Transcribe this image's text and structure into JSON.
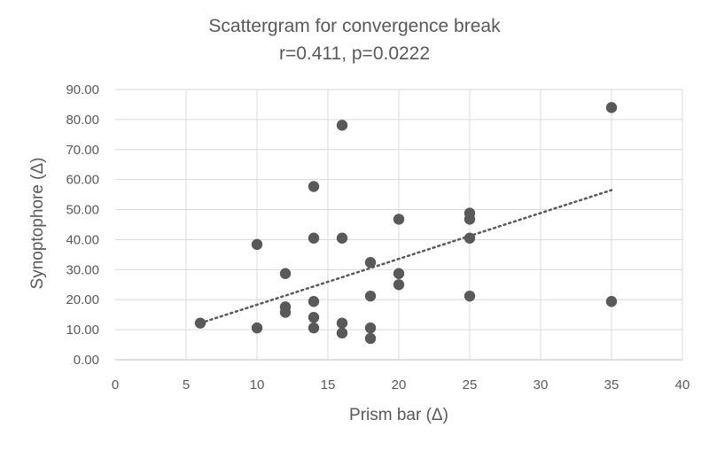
{
  "chart_data": {
    "type": "scatter",
    "title": "Scattergram for convergence break",
    "subtitle": "r=0.411, p=0.0222",
    "xlabel": "Prism bar (Δ)",
    "ylabel": "Synoptophore (Δ)",
    "xlim": [
      0,
      40
    ],
    "ylim": [
      0,
      90
    ],
    "xticks": [
      "0",
      "5",
      "10",
      "15",
      "20",
      "25",
      "30",
      "35",
      "40"
    ],
    "yticks": [
      "0.00",
      "10.00",
      "20.00",
      "30.00",
      "40.00",
      "50.00",
      "60.00",
      "70.00",
      "80.00",
      "90.00"
    ],
    "grid": true,
    "trendline": {
      "type": "linear",
      "x_start": 6,
      "y_start": 12.2,
      "x_end": 35,
      "y_end": 56.5
    },
    "colors": {
      "points": "#595959",
      "grid": "#d9d9d9",
      "text": "#595959"
    },
    "series": [
      {
        "points": [
          [
            6,
            12.2
          ],
          [
            10,
            10.6
          ],
          [
            10,
            38.4
          ],
          [
            12,
            15.8
          ],
          [
            12,
            17.6
          ],
          [
            12,
            28.7
          ],
          [
            14,
            10.6
          ],
          [
            14,
            14.1
          ],
          [
            14,
            19.4
          ],
          [
            14,
            40.5
          ],
          [
            14,
            57.7
          ],
          [
            16,
            8.9
          ],
          [
            16,
            12.2
          ],
          [
            16,
            40.5
          ],
          [
            16,
            78.1
          ],
          [
            18,
            7.1
          ],
          [
            18,
            10.6
          ],
          [
            18,
            21.2
          ],
          [
            18,
            32.4
          ],
          [
            20,
            25.0
          ],
          [
            20,
            28.7
          ],
          [
            20,
            46.8
          ],
          [
            25,
            21.2
          ],
          [
            25,
            40.5
          ],
          [
            25,
            46.8
          ],
          [
            25,
            48.8
          ],
          [
            35,
            19.4
          ],
          [
            35,
            84.0
          ]
        ]
      }
    ]
  }
}
